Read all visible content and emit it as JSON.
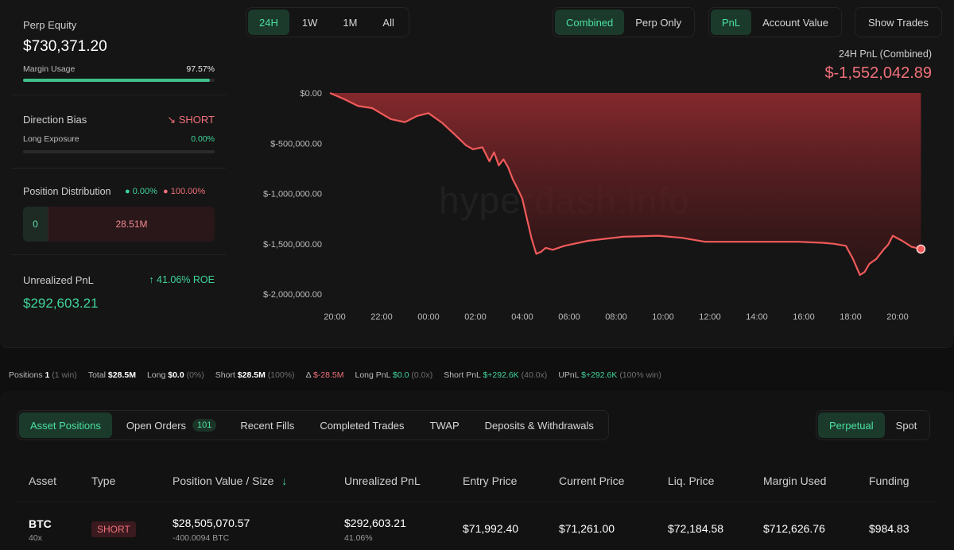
{
  "left": {
    "perp_equity_label": "Perp Equity",
    "perp_equity_value": "$730,371.20",
    "margin_usage_label": "Margin Usage",
    "margin_usage_value": "97.57%",
    "margin_usage_fraction": 0.9757,
    "direction_bias_label": "Direction Bias",
    "direction_bias_value": "SHORT",
    "long_exposure_label": "Long Exposure",
    "long_exposure_value": "0.00%",
    "position_distribution_label": "Position Distribution",
    "dist_long_pct": "0.00%",
    "dist_short_pct": "100.00%",
    "dist_zero": "0",
    "dist_short_value": "28.51M",
    "unrealized_label": "Unrealized PnL",
    "unrealized_roe": "41.06% ROE",
    "unrealized_value": "$292,603.21"
  },
  "range_tabs": [
    "24H",
    "1W",
    "1M",
    "All"
  ],
  "mode_tabs": [
    "Combined",
    "Perp Only"
  ],
  "metric_tabs": [
    "PnL",
    "Account Value"
  ],
  "show_trades": "Show Trades",
  "chart_header": {
    "label": "24H PnL (Combined)",
    "value": "$-1,552,042.89"
  },
  "watermark": "hyperdash.info",
  "chart_data": {
    "type": "area",
    "title": "24H PnL (Combined)",
    "x_ticks": [
      "20:00",
      "22:00",
      "00:00",
      "02:00",
      "04:00",
      "06:00",
      "08:00",
      "10:00",
      "12:00",
      "14:00",
      "16:00",
      "18:00",
      "20:00"
    ],
    "y_ticks": [
      "$0.00",
      "$-500,000.00",
      "$-1,000,000.00",
      "$-1,500,000.00",
      "$-2,000,000.00"
    ],
    "ylim": [
      -2000000,
      0
    ],
    "x_hours": [
      0,
      0.6,
      1.2,
      1.8,
      2.6,
      3.2,
      3.7,
      4.2,
      4.8,
      5.4,
      5.8,
      6.1,
      6.5,
      6.8,
      7.0,
      7.2,
      7.4,
      7.6,
      7.8,
      8.0,
      8.2,
      8.4,
      8.6,
      8.8,
      9.0,
      9.2,
      9.5,
      10.0,
      11.0,
      12.5,
      14.0,
      15.0,
      16.0,
      17.0,
      18.0,
      19.0,
      20.0,
      21.0,
      21.5,
      22.0,
      22.3,
      22.6,
      22.8,
      23.0,
      23.3,
      23.6,
      23.8,
      24.0,
      24.4,
      24.8,
      25.2
    ],
    "values": [
      0,
      -60000,
      -130000,
      -150000,
      -260000,
      -290000,
      -230000,
      -200000,
      -300000,
      -430000,
      -520000,
      -560000,
      -540000,
      -680000,
      -590000,
      -720000,
      -660000,
      -740000,
      -860000,
      -950000,
      -1050000,
      -1250000,
      -1450000,
      -1600000,
      -1580000,
      -1540000,
      -1560000,
      -1520000,
      -1470000,
      -1430000,
      -1420000,
      -1440000,
      -1480000,
      -1480000,
      -1480000,
      -1480000,
      -1480000,
      -1490000,
      -1500000,
      -1520000,
      -1650000,
      -1810000,
      -1780000,
      -1700000,
      -1650000,
      -1560000,
      -1510000,
      -1420000,
      -1470000,
      -1530000,
      -1552042.89
    ],
    "current_value": -1552042.89,
    "line_color": "#f05a5a",
    "fill_color": "#8a2a2e"
  },
  "stats": {
    "positions_label": "Positions",
    "positions_value": "1",
    "positions_note": "(1 win)",
    "total_label": "Total",
    "total_value": "$28.5M",
    "long_label": "Long",
    "long_value": "$0.0",
    "long_note": "(0%)",
    "short_label": "Short",
    "short_value": "$28.5M",
    "short_note": "(100%)",
    "delta_label": "Δ",
    "delta_value": "$-28.5M",
    "long_pnl_label": "Long PnL",
    "long_pnl_value": "$0.0",
    "long_pnl_note": "(0.0x)",
    "short_pnl_label": "Short PnL",
    "short_pnl_value": "$+292.6K",
    "short_pnl_note": "(40.0x)",
    "upnl_label": "UPnL",
    "upnl_value": "$+292.6K",
    "upnl_note": "(100% win)"
  },
  "bottom_tabs": {
    "asset_positions": "Asset Positions",
    "open_orders": "Open Orders",
    "open_orders_count": "101",
    "recent_fills": "Recent Fills",
    "completed_trades": "Completed Trades",
    "twap": "TWAP",
    "deposits": "Deposits & Withdrawals"
  },
  "market_tabs": [
    "Perpetual",
    "Spot"
  ],
  "table": {
    "headers": [
      "Asset",
      "Type",
      "Position Value / Size",
      "Unrealized PnL",
      "Entry Price",
      "Current Price",
      "Liq. Price",
      "Margin Used",
      "Funding"
    ],
    "row": {
      "asset": "BTC",
      "leverage": "40x",
      "type": "SHORT",
      "position_value": "$28,505,070.57",
      "size": "-400.0094 BTC",
      "upnl": "$292,603.21",
      "upnl_pct": "41.06%",
      "entry": "$71,992.40",
      "current": "$71,261.00",
      "liq": "$72,184.58",
      "margin": "$712,626.76",
      "funding": "$984.83"
    }
  }
}
